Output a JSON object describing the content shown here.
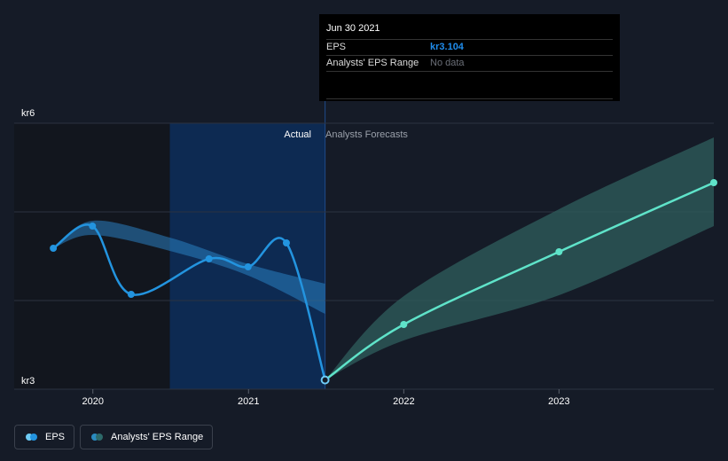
{
  "tooltip": {
    "date": "Jun 30 2021",
    "rows": [
      {
        "label": "EPS",
        "value": "kr3.104"
      },
      {
        "label": "Analysts' EPS Range",
        "value": "No data"
      }
    ]
  },
  "regions": {
    "actual": "Actual",
    "forecast": "Analysts Forecasts"
  },
  "legend": [
    {
      "label": "EPS",
      "colors": [
        "#2394df",
        "#6ecbf5"
      ]
    },
    {
      "label": "Analysts' EPS Range",
      "colors": [
        "#2d6a6a",
        "#2a8bbf"
      ]
    }
  ],
  "colors": {
    "background": "#151b27",
    "eps": "#2394df",
    "forecast": "#5fe3c9",
    "actual_band": "#2a7fc1",
    "forecast_band": "#2f5f5d",
    "actual_highlight": "#0d2a52",
    "past_shade": "#12161e"
  },
  "chart_data": {
    "type": "line",
    "y_unit_prefix": "kr",
    "yticks": [
      {
        "value": 6,
        "label": "kr6"
      },
      {
        "value": 3,
        "label": "kr3"
      }
    ],
    "ylim": [
      3,
      6
    ],
    "xlim": [
      "2019-06-30",
      "2023-12-31"
    ],
    "xticks": [
      {
        "date": "2020-01-01",
        "label": "2020"
      },
      {
        "date": "2021-01-01",
        "label": "2021"
      },
      {
        "date": "2022-01-01",
        "label": "2022"
      },
      {
        "date": "2023-01-01",
        "label": "2023"
      }
    ],
    "grid": true,
    "highlight_start": "2020-06-30",
    "divider": "2021-06-30",
    "series": [
      {
        "name": "EPS",
        "points": [
          {
            "x": "2019-09-30",
            "y": 4.59
          },
          {
            "x": "2019-12-31",
            "y": 4.84
          },
          {
            "x": "2020-03-31",
            "y": 4.07
          },
          {
            "x": "2020-09-30",
            "y": 4.47
          },
          {
            "x": "2020-12-31",
            "y": 4.38
          },
          {
            "x": "2021-03-31",
            "y": 4.65
          },
          {
            "x": "2021-06-30",
            "y": 3.104
          }
        ]
      },
      {
        "name": "Analysts Forecasts",
        "points": [
          {
            "x": "2021-06-30",
            "y": 3.104
          },
          {
            "x": "2022-01-01",
            "y": 3.73
          },
          {
            "x": "2023-01-01",
            "y": 4.55
          },
          {
            "x": "2023-12-31",
            "y": 5.33
          }
        ]
      }
    ],
    "ranges": [
      {
        "name": "Analysts' EPS Range",
        "upper": [
          {
            "x": "2019-09-30",
            "y": 4.59
          },
          {
            "x": "2020-01-01",
            "y": 4.9
          },
          {
            "x": "2020-06-30",
            "y": 4.71
          },
          {
            "x": "2021-01-01",
            "y": 4.41
          },
          {
            "x": "2021-06-30",
            "y": 4.19
          }
        ],
        "lower": [
          {
            "x": "2019-09-30",
            "y": 4.59
          },
          {
            "x": "2020-01-01",
            "y": 4.74
          },
          {
            "x": "2020-06-30",
            "y": 4.56
          },
          {
            "x": "2021-01-01",
            "y": 4.28
          },
          {
            "x": "2021-06-30",
            "y": 3.85
          }
        ]
      },
      {
        "name": "Analysts' EPS Range",
        "upper": [
          {
            "x": "2021-06-30",
            "y": 3.104
          },
          {
            "x": "2022-01-01",
            "y": 4.05
          },
          {
            "x": "2023-01-01",
            "y": 5.03
          },
          {
            "x": "2023-12-31",
            "y": 5.84
          }
        ],
        "lower": [
          {
            "x": "2021-06-30",
            "y": 3.104
          },
          {
            "x": "2022-01-01",
            "y": 3.55
          },
          {
            "x": "2023-01-01",
            "y": 4.06
          },
          {
            "x": "2023-12-31",
            "y": 4.84
          }
        ]
      }
    ]
  }
}
